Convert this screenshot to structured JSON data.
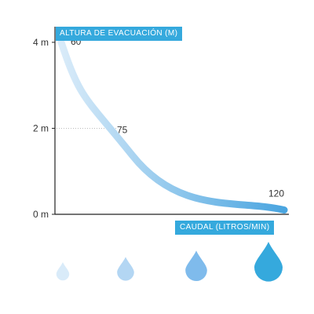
{
  "chart_data": {
    "type": "line",
    "ylabel": "ALTURA DE EVACUACIÓN (M)",
    "xlabel": "CAUDAL (LITROS/MIN)",
    "y_ticks": [
      "4 m",
      "2 m",
      "0 m"
    ],
    "y_tick_values": [
      4,
      2,
      0
    ],
    "ylim": [
      0,
      4.4
    ],
    "xlim": [
      60,
      120
    ],
    "grid": false,
    "series": [
      {
        "x": [
          60,
          75,
          120
        ],
        "y": [
          4,
          2,
          0.1
        ]
      }
    ],
    "point_labels": [
      "60",
      "75",
      "120"
    ],
    "drop_icons": [
      "water-drop-icon",
      "water-drop-icon",
      "water-drop-icon",
      "water-drop-icon"
    ],
    "colors": {
      "accent": "#35a9dd",
      "curve_start": "#d9ebf9",
      "curve_end": "#4aa5e0",
      "drops": [
        "#d9ebf9",
        "#b3d6f3",
        "#7fbbec",
        "#35a9dd"
      ]
    }
  }
}
